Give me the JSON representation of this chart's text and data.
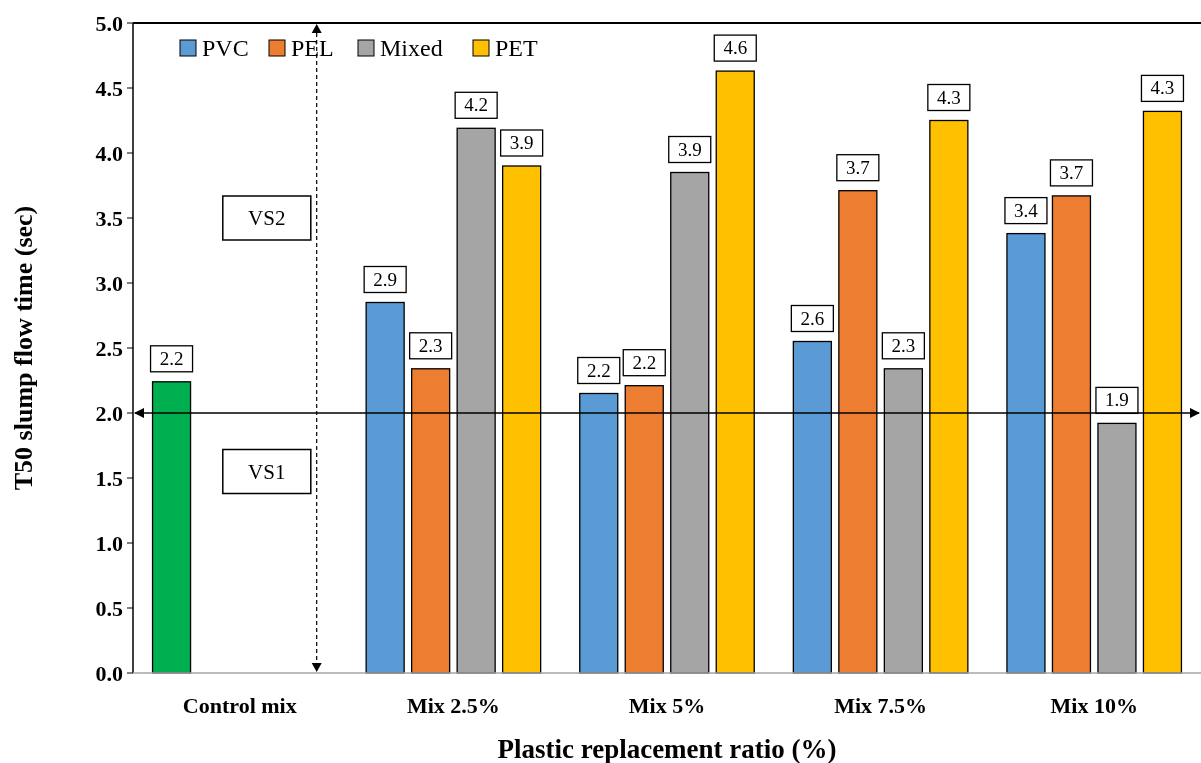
{
  "chart_data": {
    "type": "bar",
    "xlabel": "Plastic replacement ratio (%)",
    "ylabel": "T50 slump flow time (sec)",
    "categories": [
      "Control mix",
      "Mix 2.5%",
      "Mix 5%",
      "Mix 7.5%",
      "Mix 10%"
    ],
    "series": [
      {
        "name": "PVC",
        "color": "#5b9bd5",
        "colors": [
          "#00b050",
          "#5b9bd5",
          "#5b9bd5",
          "#5b9bd5",
          "#5b9bd5"
        ],
        "values": [
          2.24,
          2.85,
          2.15,
          2.55,
          3.38
        ],
        "value_labels": [
          "2.2",
          "2.9",
          "2.2",
          "2.6",
          "3.4"
        ]
      },
      {
        "name": "PEL",
        "color": "#ed7d31",
        "values": [
          null,
          2.34,
          2.21,
          3.71,
          3.67
        ],
        "value_labels": [
          null,
          "2.3",
          "2.2",
          "3.7",
          "3.7"
        ]
      },
      {
        "name": "Mixed",
        "color": "#a5a5a5",
        "values": [
          null,
          4.19,
          3.85,
          2.34,
          1.92
        ],
        "value_labels": [
          null,
          "4.2",
          "3.9",
          "2.3",
          "1.9"
        ]
      },
      {
        "name": "PET",
        "color": "#ffc000",
        "values": [
          null,
          3.9,
          4.63,
          4.25,
          4.32
        ],
        "value_labels": [
          null,
          "3.9",
          "4.6",
          "4.3",
          "4.3"
        ]
      }
    ],
    "ylim": [
      0,
      5
    ],
    "yticks": [
      {
        "value": 0,
        "label": "0.0"
      },
      {
        "value": 0.5,
        "label": "0.5"
      },
      {
        "value": 1,
        "label": "1.0"
      },
      {
        "value": 1.5,
        "label": "1.5"
      },
      {
        "value": 2,
        "label": "2.0"
      },
      {
        "value": 2.5,
        "label": "2.5"
      },
      {
        "value": 3,
        "label": "3.0"
      },
      {
        "value": 3.5,
        "label": "3.5"
      },
      {
        "value": 4,
        "label": "4.0"
      },
      {
        "value": 4.5,
        "label": "4.5"
      },
      {
        "value": 5,
        "label": "5.0"
      }
    ],
    "ref_lines": [
      {
        "axis": "y",
        "value": 2,
        "color": "#000000",
        "line_style": "solid"
      }
    ],
    "annotations": [
      "VS2",
      "VS1"
    ],
    "legend": "top",
    "grid": false
  }
}
